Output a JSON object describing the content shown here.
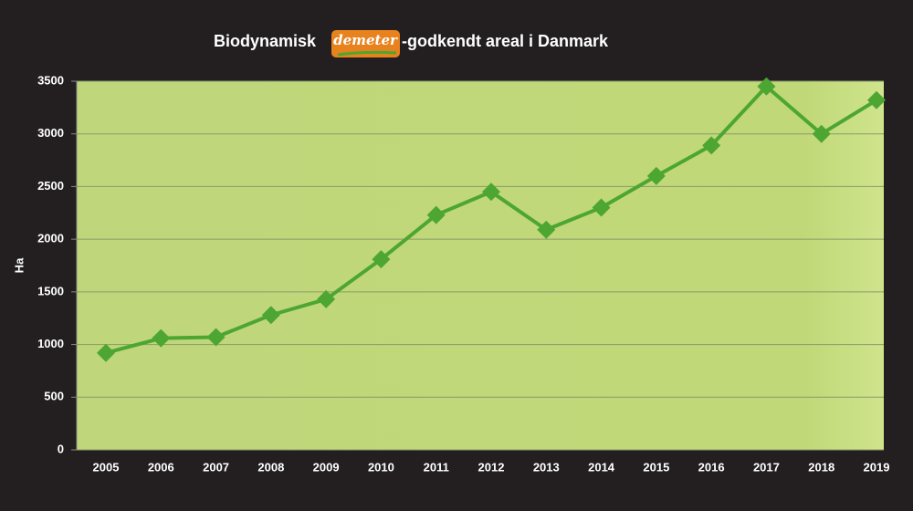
{
  "chart_data": {
    "type": "line",
    "title_parts": [
      "Biodynamisk",
      "demeter",
      "-godkendt areal i Danmark"
    ],
    "y_label": "Ha",
    "categories": [
      "2005",
      "2006",
      "2007",
      "2008",
      "2009",
      "2010",
      "2011",
      "2012",
      "2013",
      "2014",
      "2015",
      "2016",
      "2017",
      "2018",
      "2019"
    ],
    "values": [
      920,
      1060,
      1070,
      1280,
      1430,
      1810,
      2230,
      2450,
      2090,
      2300,
      2600,
      2890,
      3450,
      3000,
      3320
    ],
    "color": "#4da632",
    "ylim": [
      0,
      3500
    ],
    "yticks": [
      0,
      500,
      1000,
      1500,
      2000,
      2500,
      3000,
      3500
    ],
    "grid": true
  }
}
